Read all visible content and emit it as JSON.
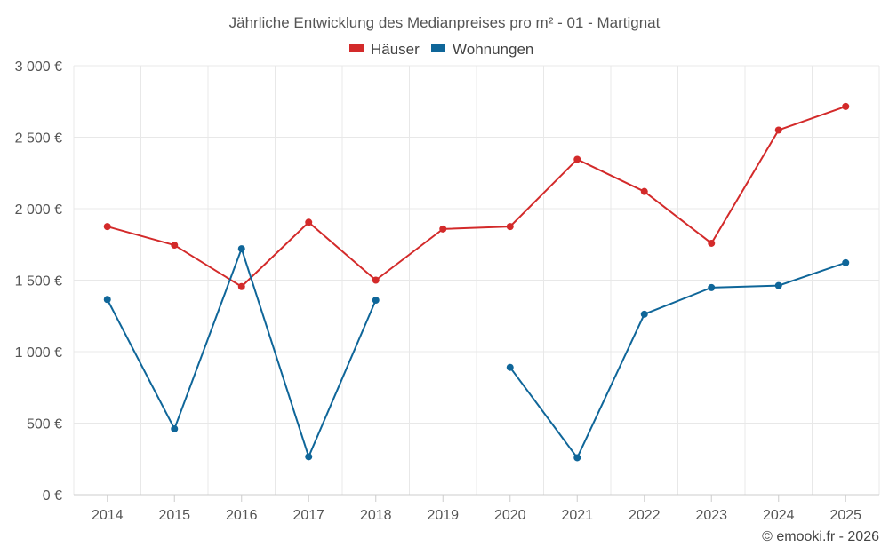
{
  "chart_data": {
    "type": "line",
    "title": "Jährliche Entwicklung des Medianpreises pro m² - 01 - Martignat",
    "categories": [
      "2014",
      "2015",
      "2016",
      "2017",
      "2018",
      "2019",
      "2020",
      "2021",
      "2022",
      "2023",
      "2024",
      "2025"
    ],
    "series": [
      {
        "name": "Häuser",
        "color": "#d32a2a",
        "values": [
          1875,
          1745,
          1455,
          1905,
          1500,
          1858,
          1875,
          2345,
          2120,
          1758,
          2550,
          2715
        ]
      },
      {
        "name": "Wohnungen",
        "color": "#0f6699",
        "values": [
          1365,
          460,
          1720,
          265,
          1360,
          null,
          890,
          258,
          1262,
          1448,
          1462,
          1622
        ]
      }
    ],
    "ylim": [
      0,
      3000
    ],
    "yticks": [
      0,
      500,
      1000,
      1500,
      2000,
      2500,
      3000
    ],
    "ytick_labels": [
      "0 €",
      "500 €",
      "1 000 €",
      "1 500 €",
      "2 000 €",
      "2 500 €",
      "3 000 €"
    ],
    "xlabel": "",
    "ylabel": "",
    "legend_position": "top-center",
    "grid": true
  },
  "credit": "© emooki.fr - 2026"
}
